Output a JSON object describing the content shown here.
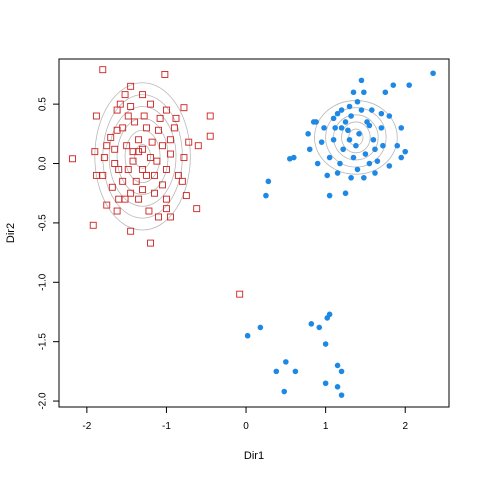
{
  "chart_data": {
    "type": "scatter",
    "xlabel": "Dir1",
    "ylabel": "Dir2",
    "xlim": [
      -2.35,
      2.55
    ],
    "ylim": [
      -2.05,
      0.88
    ],
    "xticks": [
      -2,
      -1,
      0,
      1,
      2
    ],
    "xtick_labels": [
      "-2",
      "-1",
      "0",
      "1",
      "2"
    ],
    "yticks": [
      -2.0,
      -1.5,
      -1.0,
      -0.5,
      0.0,
      0.5
    ],
    "ytick_labels": [
      "-2.0",
      "-1.5",
      "-1.0",
      "-0.5",
      "0.0",
      "0.5"
    ],
    "grid": false,
    "colors": {
      "red": "#cc2222",
      "blue": "#1e88e5",
      "contour": "#b8b8b8"
    },
    "series": [
      {
        "marker": "open-square",
        "color": "#cc2222",
        "points": [
          [
            -1.8,
            0.79
          ],
          [
            -1.02,
            0.75
          ],
          [
            -1.88,
            0.4
          ],
          [
            -1.45,
            0.65
          ],
          [
            -1.52,
            0.58
          ],
          [
            -1.62,
            0.45
          ],
          [
            -1.3,
            0.58
          ],
          [
            -1.2,
            0.5
          ],
          [
            -1.0,
            0.45
          ],
          [
            -0.78,
            0.47
          ],
          [
            -1.45,
            0.48
          ],
          [
            -1.4,
            0.35
          ],
          [
            -1.55,
            0.3
          ],
          [
            -1.7,
            0.22
          ],
          [
            -1.65,
            0.12
          ],
          [
            -1.78,
            0.05
          ],
          [
            -1.9,
            0.1
          ],
          [
            -2.18,
            0.04
          ],
          [
            -1.6,
            -0.05
          ],
          [
            -1.5,
            0.15
          ],
          [
            -1.35,
            0.2
          ],
          [
            -1.25,
            0.3
          ],
          [
            -1.1,
            0.28
          ],
          [
            -1.05,
            0.15
          ],
          [
            -0.95,
            0.08
          ],
          [
            -1.0,
            -0.05
          ],
          [
            -1.15,
            -0.1
          ],
          [
            -1.3,
            -0.05
          ],
          [
            -1.42,
            0.02
          ],
          [
            -1.55,
            -0.15
          ],
          [
            -1.68,
            -0.2
          ],
          [
            -1.8,
            -0.1
          ],
          [
            -1.75,
            -0.35
          ],
          [
            -1.6,
            -0.3
          ],
          [
            -1.45,
            -0.25
          ],
          [
            -1.3,
            -0.22
          ],
          [
            -1.15,
            -0.25
          ],
          [
            -1.0,
            -0.3
          ],
          [
            -0.85,
            -0.1
          ],
          [
            -0.78,
            0.05
          ],
          [
            -0.72,
            0.18
          ],
          [
            -0.6,
            0.15
          ],
          [
            -0.45,
            0.4
          ],
          [
            -0.45,
            0.23
          ],
          [
            -0.62,
            -0.38
          ],
          [
            -0.75,
            -0.27
          ],
          [
            -0.8,
            -0.15
          ],
          [
            -0.95,
            -0.45
          ],
          [
            -1.1,
            -0.45
          ],
          [
            -1.22,
            -0.4
          ],
          [
            -1.45,
            -0.57
          ],
          [
            -1.62,
            -0.4
          ],
          [
            -1.92,
            -0.52
          ],
          [
            -1.88,
            -0.1
          ],
          [
            -1.2,
            -0.67
          ],
          [
            -1.0,
            -0.38
          ],
          [
            -0.9,
            0.3
          ],
          [
            -0.88,
            0.38
          ],
          [
            -1.35,
            0.1
          ],
          [
            -1.2,
            0.05
          ],
          [
            -1.12,
            0.02
          ],
          [
            -1.48,
            -0.05
          ],
          [
            -1.62,
            0.28
          ],
          [
            -1.48,
            0.4
          ],
          [
            -1.75,
            0.15
          ],
          [
            -1.25,
            -0.1
          ],
          [
            -1.38,
            -0.15
          ],
          [
            -1.05,
            -0.18
          ],
          [
            -0.95,
            0.2
          ],
          [
            -1.28,
            0.4
          ],
          [
            -1.58,
            0.5
          ],
          [
            -1.42,
            0.1
          ],
          [
            -1.3,
            0.12
          ],
          [
            -1.18,
            0.18
          ],
          [
            -1.08,
            0.38
          ],
          [
            -1.52,
            -0.3
          ],
          [
            -1.35,
            -0.3
          ],
          [
            -1.65,
            0.0
          ],
          [
            -0.08,
            -1.1
          ]
        ]
      },
      {
        "marker": "filled-circle",
        "color": "#1e88e5",
        "points": [
          [
            2.35,
            0.76
          ],
          [
            2.05,
            0.66
          ],
          [
            1.85,
            0.66
          ],
          [
            1.75,
            0.6
          ],
          [
            1.45,
            0.7
          ],
          [
            1.48,
            0.6
          ],
          [
            1.35,
            0.6
          ],
          [
            1.4,
            0.52
          ],
          [
            1.3,
            0.48
          ],
          [
            1.2,
            0.45
          ],
          [
            1.1,
            0.38
          ],
          [
            1.2,
            0.3
          ],
          [
            1.32,
            0.4
          ],
          [
            1.45,
            0.45
          ],
          [
            1.58,
            0.45
          ],
          [
            1.7,
            0.42
          ],
          [
            1.8,
            0.4
          ],
          [
            1.95,
            0.3
          ],
          [
            1.9,
            0.15
          ],
          [
            2.0,
            0.1
          ],
          [
            1.95,
            0.05
          ],
          [
            1.8,
            -0.02
          ],
          [
            1.62,
            -0.08
          ],
          [
            1.48,
            -0.12
          ],
          [
            1.32,
            -0.12
          ],
          [
            1.15,
            -0.08
          ],
          [
            1.02,
            -0.1
          ],
          [
            0.9,
            0.0
          ],
          [
            0.8,
            0.12
          ],
          [
            0.78,
            0.25
          ],
          [
            0.88,
            0.35
          ],
          [
            0.98,
            0.3
          ],
          [
            1.1,
            0.2
          ],
          [
            1.22,
            0.12
          ],
          [
            1.35,
            0.05
          ],
          [
            1.5,
            0.08
          ],
          [
            1.6,
            0.2
          ],
          [
            1.7,
            0.3
          ],
          [
            1.55,
            0.32
          ],
          [
            1.42,
            0.25
          ],
          [
            1.3,
            0.2
          ],
          [
            1.18,
            0.0
          ],
          [
            1.05,
            0.05
          ],
          [
            0.95,
            0.18
          ],
          [
            1.38,
            0.15
          ],
          [
            1.25,
            -0.25
          ],
          [
            1.05,
            -0.27
          ],
          [
            1.52,
            0.35
          ],
          [
            1.62,
            0.12
          ],
          [
            1.72,
            0.15
          ],
          [
            1.12,
            0.3
          ],
          [
            1.25,
            0.35
          ],
          [
            0.6,
            0.05
          ],
          [
            0.55,
            0.04
          ],
          [
            0.28,
            -0.15
          ],
          [
            0.25,
            -0.27
          ],
          [
            0.85,
            0.35
          ],
          [
            1.4,
            -0.05
          ],
          [
            1.28,
            0.28
          ],
          [
            1.15,
            0.42
          ],
          [
            1.55,
            0.0
          ],
          [
            1.65,
            0.02
          ],
          [
            1.05,
            -1.27
          ],
          [
            1.02,
            -1.3
          ],
          [
            0.82,
            -1.35
          ],
          [
            0.92,
            -1.38
          ],
          [
            0.02,
            -1.45
          ],
          [
            0.18,
            -1.38
          ],
          [
            1.0,
            -1.52
          ],
          [
            0.5,
            -1.67
          ],
          [
            0.38,
            -1.75
          ],
          [
            0.62,
            -1.75
          ],
          [
            1.15,
            -1.7
          ],
          [
            1.2,
            -1.75
          ],
          [
            1.0,
            -1.85
          ],
          [
            1.15,
            -1.88
          ],
          [
            1.2,
            -1.95
          ],
          [
            0.48,
            -1.92
          ]
        ]
      }
    ],
    "contours": [
      {
        "cx": -1.3,
        "cy": 0.06,
        "rx": [
          0.1,
          0.22,
          0.32,
          0.42,
          0.5,
          0.6
        ],
        "ry": [
          0.1,
          0.22,
          0.32,
          0.42,
          0.52,
          0.62
        ]
      },
      {
        "cx": 1.38,
        "cy": 0.22,
        "rx": [
          0.09,
          0.18,
          0.28,
          0.38,
          0.52
        ],
        "ry": [
          0.07,
          0.13,
          0.19,
          0.25,
          0.31
        ]
      }
    ]
  }
}
